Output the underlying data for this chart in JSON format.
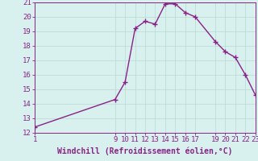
{
  "x": [
    1,
    9,
    10,
    11,
    12,
    13,
    14,
    15,
    16,
    17,
    19,
    20,
    21,
    22,
    23
  ],
  "y": [
    12.4,
    14.3,
    15.5,
    19.2,
    19.7,
    19.5,
    20.9,
    20.9,
    20.3,
    20.0,
    18.3,
    17.6,
    17.2,
    16.0,
    14.6
  ],
  "line_color": "#882288",
  "marker_color": "#882288",
  "bg_color": "#d8f0ee",
  "grid_color": "#b8d8d4",
  "xlabel": "Windchill (Refroidissement éolien,°C)",
  "xlabel_color": "#882288",
  "ylim": [
    12,
    21
  ],
  "xlim": [
    1,
    23
  ],
  "yticks": [
    12,
    13,
    14,
    15,
    16,
    17,
    18,
    19,
    20,
    21
  ],
  "xticks": [
    1,
    9,
    10,
    11,
    12,
    13,
    14,
    15,
    16,
    17,
    19,
    20,
    21,
    22,
    23
  ],
  "tick_color": "#882288",
  "font_size": 6.5,
  "line_width": 1.0,
  "marker_size": 4
}
